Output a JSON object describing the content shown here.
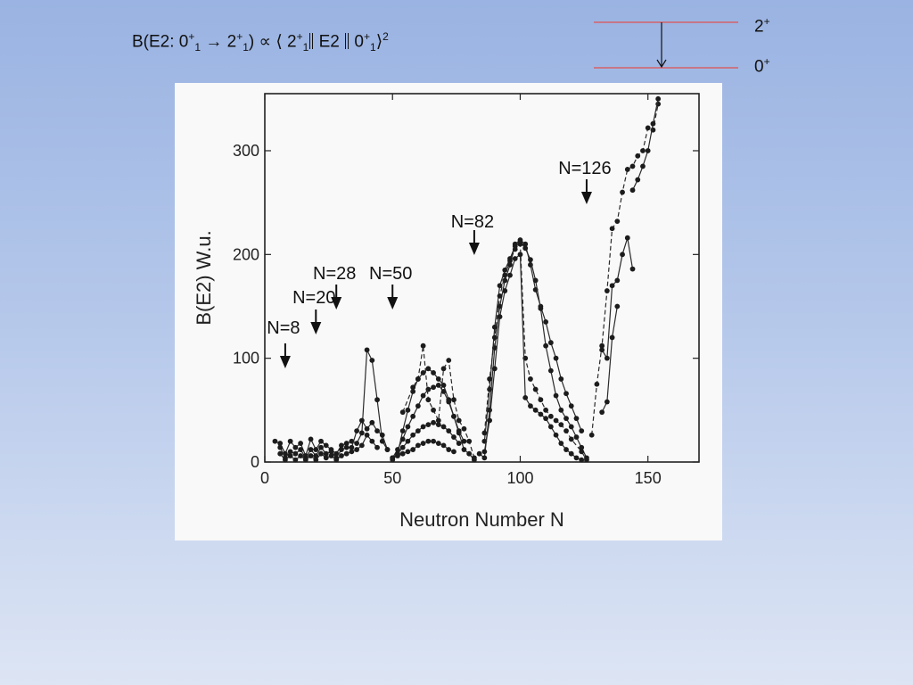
{
  "slide": {
    "formula": {
      "prefix": "B(E2: 0",
      "s1": "+",
      "b1": "1",
      "arrow": " → 2",
      "s2": "+",
      "b2": "1",
      "mid": ") ∝ ⟨ 2",
      "s3": "+",
      "b3": "1",
      "e2": " E2 ",
      "zero": " 0",
      "s4": "+",
      "b4": "1",
      "close": "⟩",
      "pow": "2"
    },
    "levels": {
      "upper_base": "2",
      "upper_sup": "+",
      "lower_base": "0",
      "lower_sup": "+",
      "line_color": "#e05050"
    }
  },
  "chart_data": {
    "type": "scatter",
    "xlabel": "Neutron Number N",
    "ylabel": "B(E2) W.u.",
    "xlim": [
      0,
      170
    ],
    "ylim": [
      0,
      355
    ],
    "x_ticks": [
      0,
      50,
      100,
      150
    ],
    "y_ticks": [
      0,
      100,
      200,
      300
    ],
    "grid": false,
    "annotations": [
      {
        "text": "N=8",
        "x": 8
      },
      {
        "text": "N=20",
        "x": 20
      },
      {
        "text": "N=28",
        "x": 28
      },
      {
        "text": "N=50",
        "x": 50
      },
      {
        "text": "N=82",
        "x": 82
      },
      {
        "text": "N=126",
        "x": 126
      }
    ],
    "series": [
      {
        "dashed": false,
        "points": [
          [
            4,
            20
          ],
          [
            6,
            18
          ],
          [
            8,
            8
          ],
          [
            10,
            20
          ],
          [
            12,
            14
          ],
          [
            14,
            18
          ],
          [
            16,
            6
          ],
          [
            18,
            22
          ],
          [
            20,
            12
          ],
          [
            22,
            20
          ],
          [
            24,
            16
          ],
          [
            26,
            12
          ],
          [
            28,
            8
          ],
          [
            30,
            16
          ],
          [
            32,
            18
          ],
          [
            34,
            20
          ],
          [
            36,
            18
          ],
          [
            38,
            28
          ],
          [
            40,
            108
          ],
          [
            42,
            98
          ],
          [
            44,
            60
          ],
          [
            46,
            20
          ],
          [
            48,
            12
          ]
        ]
      },
      {
        "dashed": false,
        "points": [
          [
            6,
            14
          ],
          [
            8,
            4
          ],
          [
            10,
            10
          ],
          [
            12,
            8
          ],
          [
            14,
            12
          ],
          [
            16,
            4
          ],
          [
            18,
            12
          ],
          [
            20,
            6
          ],
          [
            22,
            14
          ],
          [
            24,
            8
          ],
          [
            26,
            10
          ],
          [
            28,
            4
          ],
          [
            30,
            12
          ],
          [
            32,
            14
          ],
          [
            34,
            14
          ],
          [
            36,
            30
          ],
          [
            38,
            40
          ],
          [
            40,
            32
          ],
          [
            42,
            38
          ],
          [
            44,
            30
          ],
          [
            46,
            26
          ],
          [
            48,
            12
          ]
        ]
      },
      {
        "dashed": false,
        "points": [
          [
            6,
            8
          ],
          [
            8,
            2
          ],
          [
            10,
            6
          ],
          [
            12,
            2
          ],
          [
            14,
            6
          ],
          [
            16,
            2
          ],
          [
            18,
            6
          ],
          [
            20,
            2
          ],
          [
            22,
            8
          ],
          [
            24,
            4
          ],
          [
            26,
            6
          ],
          [
            28,
            2
          ],
          [
            30,
            6
          ],
          [
            32,
            8
          ],
          [
            34,
            10
          ],
          [
            36,
            12
          ],
          [
            38,
            16
          ],
          [
            40,
            26
          ],
          [
            42,
            20
          ],
          [
            44,
            14
          ]
        ]
      },
      {
        "dashed": false,
        "points": [
          [
            50,
            2
          ],
          [
            52,
            8
          ],
          [
            54,
            30
          ],
          [
            56,
            50
          ],
          [
            58,
            68
          ],
          [
            60,
            80
          ],
          [
            62,
            86
          ],
          [
            64,
            90
          ],
          [
            66,
            86
          ],
          [
            68,
            80
          ],
          [
            70,
            74
          ],
          [
            72,
            60
          ],
          [
            74,
            44
          ],
          [
            76,
            28
          ],
          [
            78,
            12
          ],
          [
            80,
            8
          ],
          [
            82,
            2
          ]
        ]
      },
      {
        "dashed": false,
        "points": [
          [
            50,
            4
          ],
          [
            52,
            12
          ],
          [
            54,
            22
          ],
          [
            56,
            34
          ],
          [
            58,
            44
          ],
          [
            60,
            54
          ],
          [
            62,
            64
          ],
          [
            64,
            70
          ],
          [
            66,
            72
          ],
          [
            68,
            74
          ],
          [
            70,
            68
          ],
          [
            72,
            58
          ],
          [
            74,
            44
          ],
          [
            76,
            30
          ],
          [
            78,
            20
          ]
        ]
      },
      {
        "dashed": false,
        "points": [
          [
            50,
            4
          ],
          [
            52,
            8
          ],
          [
            54,
            14
          ],
          [
            56,
            20
          ],
          [
            58,
            26
          ],
          [
            60,
            30
          ],
          [
            62,
            34
          ],
          [
            64,
            36
          ],
          [
            66,
            38
          ],
          [
            68,
            36
          ],
          [
            70,
            34
          ],
          [
            72,
            30
          ],
          [
            74,
            24
          ],
          [
            76,
            18
          ]
        ]
      },
      {
        "dashed": false,
        "points": [
          [
            50,
            4
          ],
          [
            52,
            6
          ],
          [
            54,
            8
          ],
          [
            56,
            10
          ],
          [
            58,
            12
          ],
          [
            60,
            16
          ],
          [
            62,
            18
          ],
          [
            64,
            20
          ],
          [
            66,
            20
          ],
          [
            68,
            18
          ],
          [
            70,
            16
          ],
          [
            72,
            12
          ],
          [
            74,
            10
          ]
        ]
      },
      {
        "dashed": true,
        "points": [
          [
            54,
            48
          ],
          [
            58,
            72
          ],
          [
            60,
            80
          ],
          [
            62,
            112
          ],
          [
            64,
            60
          ],
          [
            66,
            50
          ],
          [
            68,
            40
          ],
          [
            70,
            90
          ],
          [
            72,
            98
          ],
          [
            74,
            60
          ],
          [
            76,
            40
          ],
          [
            78,
            32
          ],
          [
            80,
            20
          ],
          [
            82,
            4
          ]
        ]
      },
      {
        "dashed": false,
        "points": [
          [
            84,
            8
          ],
          [
            86,
            4
          ],
          [
            88,
            50
          ],
          [
            90,
            110
          ],
          [
            92,
            150
          ],
          [
            94,
            175
          ],
          [
            96,
            190
          ],
          [
            98,
            210
          ],
          [
            100,
            214
          ],
          [
            102,
            210
          ],
          [
            104,
            190
          ],
          [
            106,
            166
          ],
          [
            108,
            150
          ],
          [
            110,
            135
          ],
          [
            112,
            115
          ],
          [
            114,
            100
          ],
          [
            116,
            80
          ],
          [
            118,
            66
          ],
          [
            120,
            54
          ],
          [
            122,
            42
          ],
          [
            124,
            30
          ]
        ]
      },
      {
        "dashed": false,
        "points": [
          [
            86,
            20
          ],
          [
            88,
            70
          ],
          [
            90,
            130
          ],
          [
            92,
            170
          ],
          [
            94,
            185
          ],
          [
            96,
            196
          ],
          [
            98,
            208
          ],
          [
            100,
            212
          ],
          [
            102,
            206
          ],
          [
            104,
            195
          ],
          [
            106,
            175
          ],
          [
            108,
            148
          ],
          [
            110,
            112
          ],
          [
            112,
            88
          ],
          [
            114,
            64
          ],
          [
            116,
            50
          ],
          [
            118,
            42
          ],
          [
            120,
            34
          ],
          [
            122,
            24
          ],
          [
            124,
            14
          ],
          [
            126,
            4
          ]
        ]
      },
      {
        "dashed": true,
        "points": [
          [
            86,
            28
          ],
          [
            88,
            80
          ],
          [
            90,
            120
          ],
          [
            92,
            160
          ],
          [
            94,
            180
          ],
          [
            96,
            194
          ],
          [
            98,
            205
          ],
          [
            100,
            210
          ],
          [
            102,
            100
          ],
          [
            104,
            80
          ],
          [
            106,
            70
          ],
          [
            108,
            60
          ],
          [
            110,
            50
          ],
          [
            112,
            44
          ],
          [
            114,
            40
          ],
          [
            116,
            36
          ],
          [
            118,
            30
          ],
          [
            120,
            22
          ],
          [
            124,
            10
          ],
          [
            126,
            2
          ]
        ]
      },
      {
        "dashed": false,
        "points": [
          [
            86,
            10
          ],
          [
            88,
            40
          ],
          [
            90,
            90
          ],
          [
            92,
            140
          ],
          [
            94,
            165
          ],
          [
            96,
            180
          ],
          [
            98,
            196
          ],
          [
            100,
            200
          ],
          [
            102,
            62
          ],
          [
            104,
            54
          ],
          [
            106,
            50
          ],
          [
            108,
            46
          ],
          [
            110,
            42
          ],
          [
            112,
            34
          ],
          [
            114,
            26
          ],
          [
            116,
            18
          ],
          [
            118,
            12
          ],
          [
            120,
            8
          ],
          [
            122,
            4
          ],
          [
            124,
            2
          ]
        ]
      },
      {
        "dashed": true,
        "points": [
          [
            128,
            26
          ],
          [
            130,
            75
          ],
          [
            132,
            112
          ],
          [
            134,
            165
          ],
          [
            136,
            225
          ],
          [
            138,
            232
          ],
          [
            140,
            260
          ],
          [
            142,
            282
          ],
          [
            144,
            285
          ],
          [
            146,
            295
          ],
          [
            148,
            300
          ],
          [
            150,
            322
          ],
          [
            152,
            320
          ],
          [
            154,
            345
          ]
        ]
      },
      {
        "dashed": false,
        "points": [
          [
            132,
            108
          ],
          [
            134,
            100
          ],
          [
            136,
            170
          ],
          [
            138,
            175
          ],
          [
            140,
            200
          ],
          [
            142,
            216
          ],
          [
            144,
            186
          ]
        ]
      },
      {
        "dashed": false,
        "points": [
          [
            132,
            48
          ],
          [
            134,
            58
          ],
          [
            136,
            120
          ],
          [
            138,
            150
          ]
        ]
      },
      {
        "dashed": false,
        "points": [
          [
            144,
            262
          ],
          [
            146,
            272
          ],
          [
            148,
            285
          ],
          [
            150,
            300
          ],
          [
            152,
            326
          ],
          [
            154,
            350
          ]
        ]
      }
    ]
  }
}
